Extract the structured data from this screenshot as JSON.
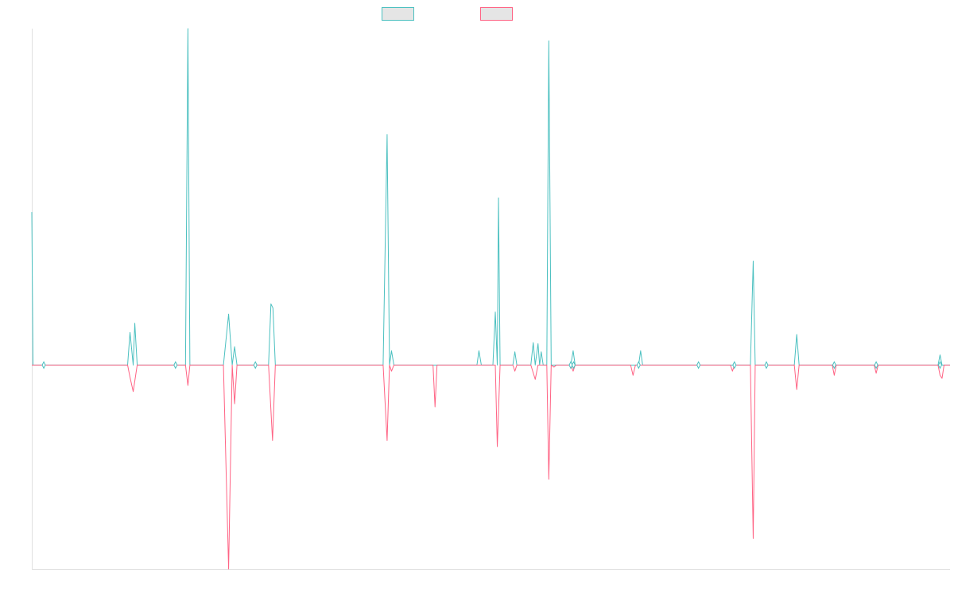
{
  "chart_data": {
    "type": "line",
    "title": "",
    "xlabel": "",
    "ylabel": "",
    "legend_position": "top",
    "grid": false,
    "xlim": [
      0,
      230
    ],
    "ylim": [
      -100,
      165
    ],
    "colors": {
      "series_1": "#4bc0c0",
      "series_2": "#ff6384",
      "legend_fill": "#e5e5e5",
      "axis": "#e0e0e0"
    },
    "series": [
      {
        "key": "series_1",
        "name": "",
        "color": "#4bc0c0",
        "points": [
          [
            0,
            75
          ],
          [
            0.3,
            0
          ],
          [
            3,
            0
          ],
          [
            4,
            0
          ],
          [
            24,
            0
          ],
          [
            24.6,
            16
          ],
          [
            25.4,
            0
          ],
          [
            25.8,
            20.5
          ],
          [
            26.4,
            0
          ],
          [
            35.5,
            0
          ],
          [
            36,
            0
          ],
          [
            38.5,
            0
          ],
          [
            39.1,
            165
          ],
          [
            39.6,
            0
          ],
          [
            48,
            0
          ],
          [
            49.3,
            25
          ],
          [
            50.2,
            0
          ],
          [
            50.8,
            9
          ],
          [
            51.4,
            0
          ],
          [
            56,
            0
          ],
          [
            59.3,
            0
          ],
          [
            59.9,
            30
          ],
          [
            60.4,
            28
          ],
          [
            61,
            0
          ],
          [
            88,
            0
          ],
          [
            89,
            113
          ],
          [
            89.6,
            0
          ],
          [
            90.1,
            7
          ],
          [
            90.7,
            0
          ],
          [
            101,
            0
          ],
          [
            111.5,
            0
          ],
          [
            112,
            7
          ],
          [
            112.6,
            0
          ],
          [
            115.5,
            0
          ],
          [
            116.1,
            26
          ],
          [
            116.6,
            0
          ],
          [
            116.9,
            82
          ],
          [
            117.3,
            0
          ],
          [
            120.5,
            0
          ],
          [
            121,
            6.5
          ],
          [
            121.5,
            0
          ],
          [
            125,
            0
          ],
          [
            125.6,
            11
          ],
          [
            126.1,
            0
          ],
          [
            126.8,
            10.5
          ],
          [
            127.2,
            0
          ],
          [
            127.6,
            6.5
          ],
          [
            128.1,
            0
          ],
          [
            129,
            0
          ],
          [
            129.5,
            159
          ],
          [
            130.1,
            0
          ],
          [
            135,
            0
          ],
          [
            135.6,
            7
          ],
          [
            136.1,
            0
          ],
          [
            152,
            0
          ],
          [
            152.5,
            7
          ],
          [
            153,
            0
          ],
          [
            180,
            0
          ],
          [
            180.7,
            51
          ],
          [
            181.2,
            0
          ],
          [
            191,
            0
          ],
          [
            191.6,
            15
          ],
          [
            192.2,
            0
          ],
          [
            227,
            0
          ],
          [
            227.5,
            5
          ],
          [
            228,
            0
          ],
          [
            230,
            0
          ]
        ]
      },
      {
        "key": "series_2",
        "name": "",
        "color": "#ff6384",
        "points": [
          [
            0,
            0
          ],
          [
            3,
            0
          ],
          [
            24,
            0
          ],
          [
            24.6,
            -6
          ],
          [
            25.4,
            -13
          ],
          [
            26.4,
            0
          ],
          [
            38.5,
            0
          ],
          [
            39.1,
            -10
          ],
          [
            39.6,
            0
          ],
          [
            48,
            0
          ],
          [
            49.3,
            -100
          ],
          [
            50.2,
            0
          ],
          [
            50.8,
            -19
          ],
          [
            51.4,
            0
          ],
          [
            59.3,
            0
          ],
          [
            60.3,
            -37
          ],
          [
            61,
            0
          ],
          [
            88,
            0
          ],
          [
            89,
            -37
          ],
          [
            89.6,
            0
          ],
          [
            90.1,
            -3
          ],
          [
            90.7,
            0
          ],
          [
            100.5,
            0
          ],
          [
            101,
            -20.5
          ],
          [
            101.5,
            0
          ],
          [
            115.5,
            0
          ],
          [
            116.1,
            0
          ],
          [
            116.6,
            -40
          ],
          [
            117.3,
            0
          ],
          [
            120.5,
            0
          ],
          [
            121,
            -3
          ],
          [
            121.5,
            0
          ],
          [
            125,
            0
          ],
          [
            126.1,
            -7
          ],
          [
            126.8,
            0
          ],
          [
            129,
            0
          ],
          [
            129.5,
            -56
          ],
          [
            130.1,
            0
          ],
          [
            130.8,
            -1
          ],
          [
            131.4,
            0
          ],
          [
            135,
            0
          ],
          [
            135.6,
            -3
          ],
          [
            136.1,
            0
          ],
          [
            150,
            0
          ],
          [
            150.6,
            -5
          ],
          [
            151.2,
            0
          ],
          [
            175,
            0
          ],
          [
            175.5,
            -3
          ],
          [
            176,
            0
          ],
          [
            180,
            0
          ],
          [
            180.7,
            -85
          ],
          [
            181.2,
            0
          ],
          [
            191,
            0
          ],
          [
            191.6,
            -12
          ],
          [
            192.2,
            0
          ],
          [
            200.5,
            0
          ],
          [
            201,
            -5
          ],
          [
            201.5,
            0
          ],
          [
            211,
            0
          ],
          [
            211.5,
            -4
          ],
          [
            212,
            0
          ],
          [
            227,
            0
          ],
          [
            227.5,
            -5
          ],
          [
            228,
            -6.5
          ],
          [
            228.5,
            0
          ],
          [
            230,
            0
          ]
        ]
      }
    ],
    "markers": [
      [
        3,
        0
      ],
      [
        36,
        0
      ],
      [
        56,
        0
      ],
      [
        135,
        0
      ],
      [
        135.7,
        0
      ],
      [
        152,
        0
      ],
      [
        167,
        0
      ],
      [
        176,
        0
      ],
      [
        184,
        0
      ],
      [
        201,
        0
      ],
      [
        211.5,
        0
      ],
      [
        227.5,
        0
      ]
    ]
  }
}
